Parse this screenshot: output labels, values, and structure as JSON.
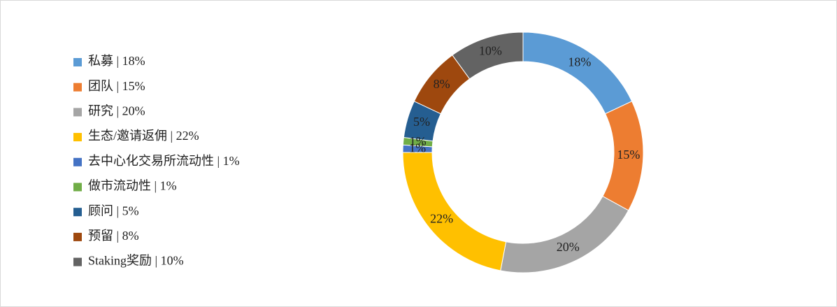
{
  "chart_data": {
    "type": "donut",
    "categories": [
      "私募 | 18%",
      "团队 | 15%",
      "研究 | 20%",
      "生态/邀请返佣 | 22%",
      "去中心化交易所流动性 | 1%",
      "做市流动性 | 1%",
      "顾问 | 5%",
      "预留 | 8%",
      "Staking奖励 | 10%"
    ],
    "values": [
      18,
      15,
      20,
      22,
      1,
      1,
      5,
      8,
      10
    ],
    "value_labels": [
      "18%",
      "15%",
      "20%",
      "22%",
      "1%",
      "1%",
      "5%",
      "8%",
      "10%"
    ],
    "colors": [
      "#5b9bd5",
      "#ed7d31",
      "#a5a5a5",
      "#ffc000",
      "#4472c4",
      "#70ad47",
      "#255e91",
      "#9e480e",
      "#636363"
    ],
    "legend": "left"
  }
}
